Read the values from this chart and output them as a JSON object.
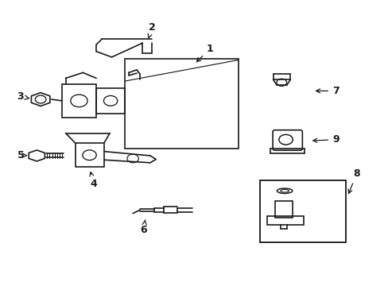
{
  "background_color": "#ffffff",
  "line_color": "#1a1a1a",
  "line_width": 1.2,
  "fig_width": 4.89,
  "fig_height": 3.6,
  "dpi": 100
}
